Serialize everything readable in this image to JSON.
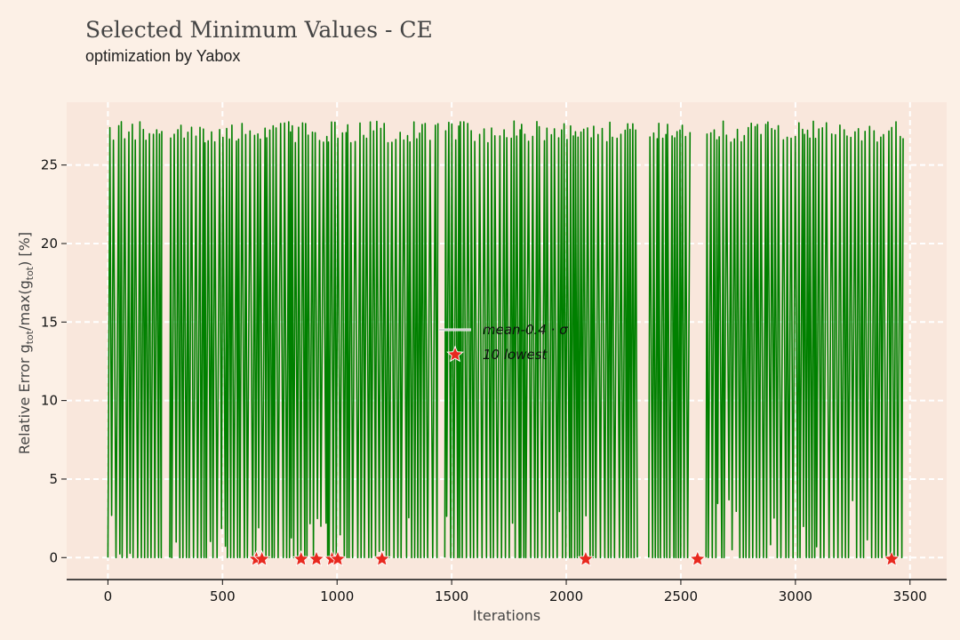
{
  "chart_data": {
    "type": "line",
    "title": "Selected Minimum Values - CE",
    "subtitle": "optimization by Yabox",
    "xlabel": "Iterations",
    "ylabel": "Relative Error g_tot/max(g_tot) [%]",
    "ylabel_parts": {
      "pre": "Relative Error g",
      "sub1": "tot",
      "mid": "/max(g",
      "sub2": "tot",
      "post": ") [%]"
    },
    "xlim": [
      -180,
      3660
    ],
    "ylim": [
      -1.4,
      29
    ],
    "x_ticks": [
      0,
      500,
      1000,
      1500,
      2000,
      2500,
      3000,
      3500
    ],
    "y_ticks": [
      0,
      5,
      10,
      15,
      20,
      25
    ],
    "grid": true,
    "legend_position": "center",
    "line_color": "#008000",
    "marker_color": "#e8281e",
    "series": [
      {
        "name": "mean-0.4 · σ",
        "kind": "line",
        "segments": [
          [
            0,
            235
          ],
          [
            270,
            1440
          ],
          [
            1470,
            2310
          ],
          [
            2360,
            2540
          ],
          [
            2610,
            3470
          ]
        ],
        "y_range": [
          0,
          27.8
        ]
      },
      {
        "name": "10 lowest",
        "kind": "scatter",
        "x": [
          648,
          672,
          843,
          910,
          978,
          1003,
          1196,
          2085,
          2573,
          3420
        ],
        "y": [
          -0.1,
          -0.1,
          -0.1,
          -0.1,
          -0.1,
          -0.1,
          -0.1,
          -0.1,
          -0.1,
          -0.1
        ]
      }
    ]
  }
}
